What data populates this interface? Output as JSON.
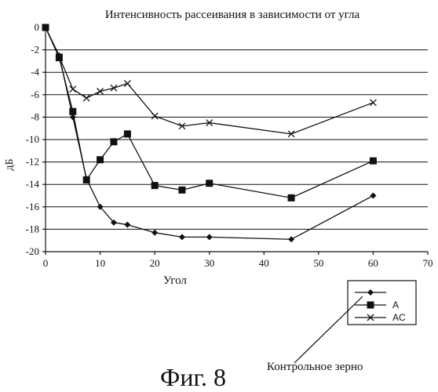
{
  "chart_data": {
    "type": "line",
    "title": "Интенсивность рассеивания в зависимости от угла",
    "xlabel": "Угол",
    "ylabel": "дБ",
    "xlim": [
      0,
      70
    ],
    "ylim": [
      -20,
      0
    ],
    "x_ticks": [
      "0",
      "10",
      "20",
      "30",
      "40",
      "50",
      "60",
      "70"
    ],
    "y_ticks": [
      "0",
      "-2",
      "-4",
      "-6",
      "-8",
      "-10",
      "-12",
      "-14",
      "-16",
      "-18",
      "-20"
    ],
    "grid": "horizontal",
    "legend_position": "bottom-right",
    "series": [
      {
        "name": "",
        "marker": "diamond",
        "x": [
          0,
          2.5,
          5,
          7.5,
          10,
          12.5,
          15,
          20,
          25,
          30,
          45,
          60
        ],
        "y": [
          0,
          -2.5,
          -8.0,
          -13.5,
          -16.0,
          -17.4,
          -17.6,
          -18.3,
          -18.7,
          -18.7,
          -18.9,
          -15.0
        ]
      },
      {
        "name": "A",
        "marker": "square",
        "x": [
          0,
          2.5,
          5,
          7.5,
          10,
          12.5,
          15,
          20,
          25,
          30,
          45,
          60
        ],
        "y": [
          0,
          -2.7,
          -7.5,
          -13.6,
          -11.8,
          -10.2,
          -9.5,
          -14.1,
          -14.5,
          -13.9,
          -15.2,
          -11.9
        ]
      },
      {
        "name": "AC",
        "marker": "x",
        "x": [
          0,
          2.5,
          5,
          7.5,
          10,
          12.5,
          15,
          20,
          25,
          30,
          45,
          60
        ],
        "y": [
          0,
          -2.6,
          -5.5,
          -6.3,
          -5.7,
          -5.4,
          -5.0,
          -7.9,
          -8.8,
          -8.5,
          -9.5,
          -6.7
        ]
      }
    ],
    "annotation": "Контрольное зерно",
    "caption": "Фиг. 8"
  }
}
